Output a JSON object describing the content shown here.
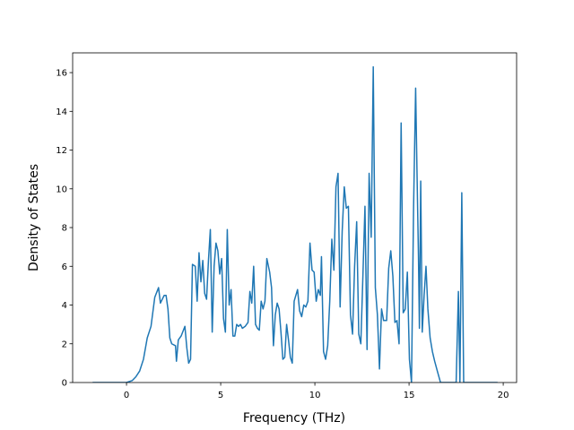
{
  "chart_data": {
    "type": "line",
    "x_label": "Frequency (THz)",
    "y_label": "Density of States",
    "xlim": [
      -2.86,
      20.71
    ],
    "ylim": [
      0,
      17.02
    ],
    "xticks": [
      0,
      5,
      10,
      15,
      20
    ],
    "yticks": [
      0,
      2,
      4,
      6,
      8,
      10,
      12,
      14,
      16
    ],
    "x": [
      -1.8,
      0,
      0.3,
      0.5,
      0.7,
      0.9,
      1.1,
      1.3,
      1.5,
      1.7,
      1.8,
      2.0,
      2.1,
      2.2,
      2.3,
      2.4,
      2.6,
      2.65,
      2.75,
      2.9,
      3.1,
      3.2,
      3.3,
      3.4,
      3.5,
      3.65,
      3.75,
      3.85,
      3.95,
      4.05,
      4.15,
      4.25,
      4.35,
      4.45,
      4.55,
      4.65,
      4.75,
      4.85,
      4.95,
      5.05,
      5.15,
      5.25,
      5.35,
      5.45,
      5.55,
      5.65,
      5.75,
      5.85,
      5.95,
      6.05,
      6.15,
      6.3,
      6.45,
      6.55,
      6.65,
      6.75,
      6.85,
      6.95,
      7.05,
      7.15,
      7.25,
      7.35,
      7.45,
      7.6,
      7.7,
      7.8,
      7.9,
      8.0,
      8.1,
      8.2,
      8.3,
      8.4,
      8.5,
      8.6,
      8.7,
      8.8,
      8.9,
      9.08,
      9.19,
      9.3,
      9.41,
      9.52,
      9.63,
      9.74,
      9.85,
      9.96,
      10.07,
      10.18,
      10.29,
      10.35,
      10.46,
      10.57,
      10.68,
      10.79,
      10.9,
      11.01,
      11.12,
      11.23,
      11.34,
      11.45,
      11.56,
      11.67,
      11.78,
      11.89,
      12.0,
      12.11,
      12.22,
      12.33,
      12.44,
      12.55,
      12.66,
      12.77,
      12.88,
      12.99,
      13.1,
      13.21,
      13.32,
      13.43,
      13.54,
      13.65,
      13.81,
      13.92,
      14.03,
      14.14,
      14.25,
      14.36,
      14.47,
      14.58,
      14.69,
      14.8,
      14.91,
      15.02,
      15.13,
      15.24,
      15.35,
      15.42,
      15.5,
      15.55,
      15.62,
      15.7,
      15.8,
      15.9,
      16.0,
      16.12,
      16.24,
      16.36,
      16.5,
      16.67,
      17.5,
      17.62,
      17.7,
      17.8,
      17.9,
      19.7
    ],
    "series": [
      {
        "color": "#1f77b4",
        "values": [
          0,
          0,
          0.1,
          0.3,
          0.6,
          1.2,
          2.3,
          2.9,
          4.4,
          4.9,
          4.1,
          4.5,
          4.5,
          3.8,
          2.3,
          2.0,
          1.9,
          1.1,
          2.2,
          2.4,
          2.9,
          1.8,
          1.0,
          1.2,
          6.1,
          6.0,
          4.2,
          6.7,
          5.2,
          6.3,
          4.6,
          4.3,
          6.3,
          7.9,
          2.6,
          6.0,
          7.2,
          6.8,
          5.6,
          6.4,
          3.3,
          2.6,
          7.9,
          4.0,
          4.8,
          2.4,
          2.4,
          3.0,
          2.9,
          3.0,
          2.8,
          2.9,
          3.1,
          4.7,
          4.1,
          6.0,
          3.0,
          2.8,
          2.7,
          4.2,
          3.8,
          4.2,
          6.4,
          5.7,
          4.9,
          1.9,
          3.5,
          4.1,
          3.8,
          2.6,
          1.2,
          1.3,
          3.0,
          2.2,
          1.3,
          1.0,
          4.2,
          4.8,
          3.7,
          3.4,
          4.0,
          3.9,
          4.2,
          7.2,
          5.8,
          5.7,
          4.2,
          4.8,
          4.5,
          6.5,
          1.6,
          1.2,
          1.9,
          4.2,
          7.4,
          5.8,
          10.1,
          10.8,
          3.9,
          7.8,
          10.1,
          9.0,
          9.1,
          3.5,
          2.5,
          6.0,
          8.3,
          2.5,
          2.0,
          5.5,
          9.1,
          1.7,
          10.8,
          7.5,
          16.3,
          4.9,
          3.5,
          0.7,
          3.8,
          3.2,
          3.2,
          5.9,
          6.8,
          5.5,
          3.1,
          3.2,
          2.0,
          13.4,
          3.6,
          3.8,
          5.7,
          1.2,
          0.0,
          9.0,
          15.2,
          11.0,
          6.5,
          2.8,
          10.4,
          2.6,
          4.5,
          6.0,
          3.8,
          2.3,
          1.6,
          1.1,
          0.6,
          0.0,
          0,
          4.7,
          0,
          9.8,
          0,
          0
        ]
      }
    ]
  }
}
